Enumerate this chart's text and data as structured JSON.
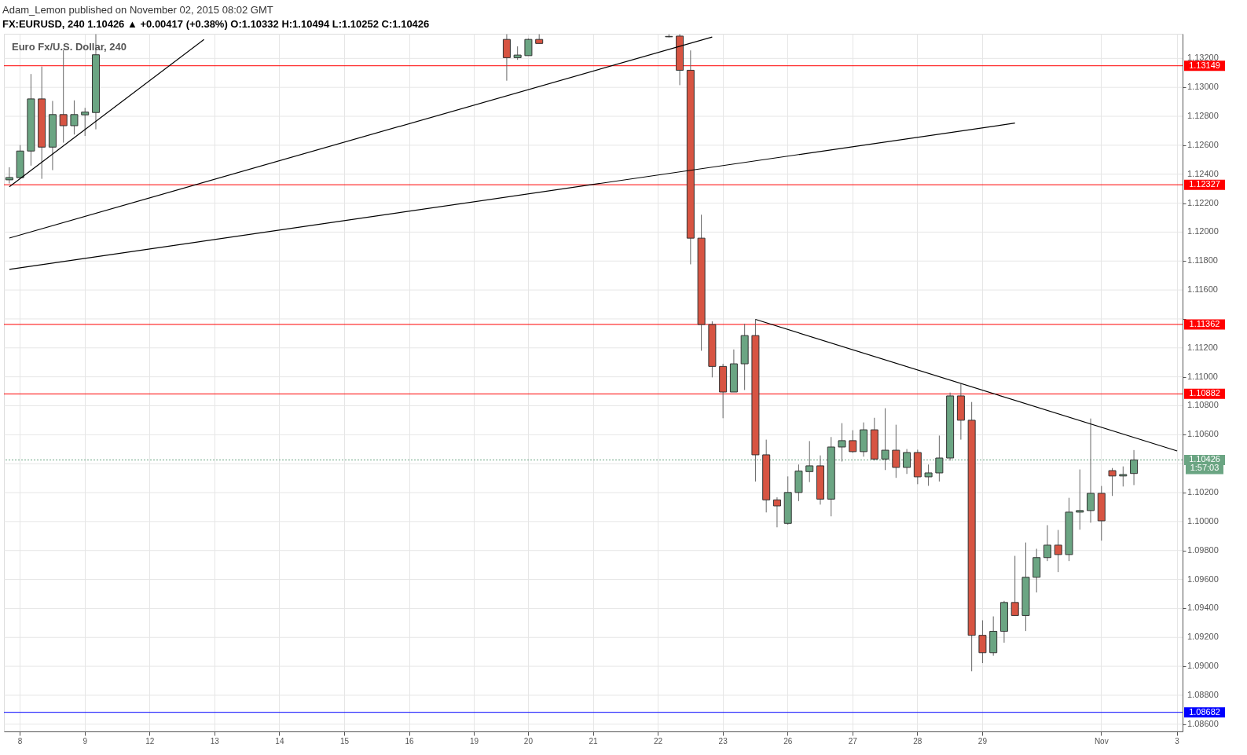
{
  "chart_data": {
    "type": "candlestick",
    "title": "FX:EURUSD, 240  1.10426 ▲ +0.00417 (+0.38%)  O:1.10332  H:1.10494  L:1.10252  C:1.10426",
    "annotations": [
      "Adam_Lemon published on November 02, 2015 08:02 GMT",
      "Euro Fx/U.S. Dollar, 240",
      "1:57:03"
    ],
    "categories": [
      null,
      "8",
      null,
      null,
      null,
      null,
      null,
      "9",
      null,
      null,
      null,
      null,
      null,
      "12",
      null,
      null,
      null,
      null,
      null,
      "13",
      null,
      null,
      null,
      null,
      null,
      "14",
      null,
      null,
      null,
      null,
      null,
      "15",
      null,
      null,
      null,
      null,
      null,
      "16",
      null,
      null,
      null,
      null,
      null,
      "19",
      null,
      null,
      null,
      null,
      "20",
      null,
      null,
      null,
      null,
      null,
      "21",
      null,
      null,
      null,
      null,
      null,
      "22",
      null,
      null,
      null,
      null,
      null,
      "23",
      null,
      null,
      null,
      null,
      null,
      "26",
      null,
      null,
      null,
      null,
      null,
      "27",
      null,
      null,
      null,
      null,
      null,
      "28",
      null,
      null,
      null,
      null,
      null,
      "29",
      null,
      null,
      null,
      null,
      null,
      null,
      null,
      null,
      null,
      null,
      "Nov",
      null,
      null,
      null,
      null,
      null,
      null,
      "3"
    ],
    "ohlc": [
      [
        1.12361,
        1.12448,
        1.12336,
        1.12377
      ],
      [
        1.12376,
        1.12601,
        1.12372,
        1.1256
      ],
      [
        1.1256,
        1.13092,
        1.12459,
        1.1292
      ],
      [
        1.1292,
        1.13144,
        1.12368,
        1.12587
      ],
      [
        1.12587,
        1.12906,
        1.12428,
        1.12812
      ],
      [
        1.12812,
        1.13258,
        1.12618,
        1.12735
      ],
      [
        1.12735,
        1.1291,
        1.12674,
        1.12812
      ],
      [
        1.1281,
        1.12858,
        1.12664,
        1.12829
      ],
      [
        1.12826,
        1.13367,
        1.1271,
        1.13225
      ],
      null,
      null,
      null,
      null,
      null,
      null,
      null,
      null,
      null,
      null,
      null,
      null,
      null,
      null,
      null,
      null,
      null,
      null,
      null,
      null,
      null,
      null,
      null,
      null,
      null,
      null,
      null,
      null,
      null,
      null,
      null,
      null,
      null,
      null,
      null,
      null,
      null,
      [
        1.13331,
        1.13367,
        1.13046,
        1.13205
      ],
      [
        1.13205,
        1.13283,
        1.1319,
        1.13223
      ],
      [
        1.13219,
        1.13337,
        1.13219,
        1.13331
      ],
      [
        1.13331,
        1.13367,
        1.13303,
        1.13303
      ],
      null,
      null,
      null,
      null,
      null,
      null,
      null,
      null,
      null,
      null,
      null,
      [
        1.13349,
        1.13367,
        1.13345,
        1.13352
      ],
      [
        1.13354,
        1.13367,
        1.13015,
        1.13118
      ],
      [
        1.13118,
        1.13255,
        1.11777,
        1.11958
      ],
      [
        1.11958,
        1.1212,
        1.1118,
        1.11361
      ],
      [
        1.11361,
        1.11383,
        1.10996,
        1.11072
      ],
      [
        1.11072,
        1.1109,
        1.10714,
        1.10895
      ],
      [
        1.10895,
        1.11189,
        1.10895,
        1.1109
      ],
      [
        1.1109,
        1.11367,
        1.10909,
        1.11285
      ],
      [
        1.11285,
        1.11397,
        1.10277,
        1.10461
      ],
      [
        1.10461,
        1.10566,
        1.10063,
        1.1015
      ],
      [
        1.1015,
        1.10168,
        1.0996,
        1.10108
      ],
      [
        1.09987,
        1.10312,
        1.09978,
        1.10201
      ],
      [
        1.10201,
        1.10394,
        1.10141,
        1.10349
      ],
      [
        1.10345,
        1.10556,
        1.10273,
        1.10385
      ],
      [
        1.10385,
        1.10457,
        1.10117,
        1.10155
      ],
      [
        1.10155,
        1.10584,
        1.10036,
        1.10515
      ],
      [
        1.10515,
        1.1068,
        1.10415,
        1.10559
      ],
      [
        1.10559,
        1.10631,
        1.10475,
        1.10483
      ],
      [
        1.10483,
        1.10685,
        1.10448,
        1.10634
      ],
      [
        1.10634,
        1.10717,
        1.10421,
        1.10432
      ],
      [
        1.10432,
        1.10783,
        1.10356,
        1.10493
      ],
      [
        1.10493,
        1.10669,
        1.10302,
        1.10374
      ],
      [
        1.10374,
        1.10501,
        1.10329,
        1.10477
      ],
      [
        1.10477,
        1.10497,
        1.10258,
        1.10309
      ],
      [
        1.10309,
        1.10394,
        1.10247,
        1.10336
      ],
      [
        1.10336,
        1.10594,
        1.10277,
        1.10439
      ],
      [
        1.10439,
        1.10891,
        1.10421,
        1.10868
      ],
      [
        1.10868,
        1.10952,
        1.10566,
        1.107
      ],
      [
        1.107,
        1.10826,
        1.08966,
        1.09214
      ],
      [
        1.09214,
        1.09318,
        1.09022,
        1.09094
      ],
      [
        1.09094,
        1.09345,
        1.09073,
        1.09242
      ],
      [
        1.09242,
        1.09452,
        1.09163,
        1.09441
      ],
      [
        1.09441,
        1.09763,
        1.09351,
        1.09351
      ],
      [
        1.09351,
        1.09855,
        1.09244,
        1.09615
      ],
      [
        1.09615,
        1.09812,
        1.0951,
        1.09751
      ],
      [
        1.09751,
        1.09975,
        1.09727,
        1.09837
      ],
      [
        1.09837,
        1.09942,
        1.09651,
        1.09772
      ],
      [
        1.09772,
        1.10164,
        1.09727,
        1.10065
      ],
      [
        1.10065,
        1.1036,
        1.09944,
        1.10076
      ],
      [
        1.10076,
        1.10712,
        1.09992,
        1.10195
      ],
      [
        1.10195,
        1.10246,
        1.09868,
        1.10005
      ],
      [
        1.10352,
        1.1037,
        1.10177,
        1.10315
      ],
      [
        1.10315,
        1.10381,
        1.10242,
        1.10325
      ],
      [
        1.10332,
        1.10494,
        1.10252,
        1.10426
      ],
      null,
      null,
      null,
      null
    ],
    "colors": [
      "#6ba583",
      "#6ba583",
      "#6ba583",
      "#d75442",
      "#6ba583",
      "#d75442",
      "#6ba583",
      "#6ba583",
      "#6ba583",
      null,
      null,
      null,
      null,
      null,
      null,
      null,
      null,
      null,
      null,
      null,
      null,
      null,
      null,
      null,
      null,
      null,
      null,
      null,
      null,
      null,
      null,
      null,
      null,
      null,
      null,
      null,
      null,
      null,
      null,
      null,
      null,
      null,
      null,
      null,
      null,
      null,
      "#d75442",
      "#6ba583",
      "#6ba583",
      "#d75442",
      null,
      null,
      null,
      null,
      null,
      null,
      null,
      null,
      null,
      null,
      null,
      "#6ba583",
      "#d75442",
      "#d75442",
      "#d75442",
      "#d75442",
      "#d75442",
      "#6ba583",
      "#6ba583",
      "#d75442",
      "#d75442",
      "#d75442",
      "#6ba583",
      "#6ba583",
      "#6ba583",
      "#d75442",
      "#6ba583",
      "#6ba583",
      "#d75442",
      "#6ba583",
      "#d75442",
      "#6ba583",
      "#d75442",
      "#6ba583",
      "#d75442",
      "#6ba583",
      "#6ba583",
      "#6ba583",
      "#d75442",
      "#d75442",
      "#d75442",
      "#6ba583",
      "#6ba583",
      "#d75442",
      "#6ba583",
      "#6ba583",
      "#6ba583",
      "#d75442",
      "#6ba583",
      "#6ba583",
      "#6ba583",
      "#d75442",
      "#d75442",
      "#6ba583",
      "#6ba583",
      null,
      null,
      null,
      null
    ],
    "series": [
      {
        "type": "line",
        "color": "#000000",
        "values": [
          1.12313,
          null,
          null,
          null,
          null,
          null,
          null,
          null,
          null,
          null,
          null,
          null,
          null,
          null,
          null,
          null,
          null,
          null,
          1.13331,
          null,
          null,
          null,
          null,
          null,
          null,
          null,
          null,
          null,
          null,
          null,
          null,
          null,
          null,
          null,
          null,
          null,
          null,
          null,
          null,
          null,
          null,
          null,
          null,
          null,
          null,
          null,
          null,
          null,
          null,
          null,
          null,
          null,
          null,
          null,
          null,
          null,
          null,
          null,
          null,
          null,
          null,
          null,
          null,
          null,
          null,
          null,
          null,
          null,
          null,
          null,
          null,
          null,
          null,
          null,
          null,
          null,
          null,
          null,
          null,
          null,
          null,
          null,
          null,
          null,
          null,
          null,
          null,
          null,
          null,
          null,
          null,
          null,
          null,
          null,
          null,
          null,
          null,
          null,
          null,
          null,
          null,
          null,
          null,
          null,
          null,
          null,
          null,
          null,
          null
        ]
      },
      {
        "type": "line",
        "color": "#000000",
        "values": [
          1.11959,
          null,
          null,
          null,
          null,
          null,
          null,
          null,
          null,
          null,
          null,
          null,
          null,
          null,
          null,
          null,
          null,
          null,
          null,
          null,
          null,
          null,
          null,
          null,
          null,
          null,
          null,
          null,
          null,
          null,
          null,
          null,
          null,
          null,
          null,
          null,
          null,
          null,
          null,
          null,
          null,
          null,
          null,
          null,
          null,
          null,
          null,
          null,
          null,
          null,
          null,
          null,
          null,
          null,
          null,
          null,
          null,
          null,
          null,
          null,
          null,
          null,
          null,
          null,
          null,
          1.13348,
          null,
          null,
          null,
          null,
          null,
          null,
          null,
          null,
          null,
          null,
          null,
          null,
          null,
          null,
          null,
          null,
          null,
          null,
          null,
          null,
          null,
          null,
          null,
          null,
          null,
          null,
          null,
          null,
          null,
          null,
          null,
          null,
          null,
          null,
          null,
          null,
          null,
          null,
          null,
          null,
          null,
          null,
          null
        ]
      },
      {
        "type": "line",
        "color": "#000000",
        "values": [
          1.11742,
          null,
          null,
          null,
          null,
          null,
          null,
          null,
          null,
          null,
          null,
          null,
          null,
          null,
          null,
          null,
          null,
          null,
          null,
          null,
          null,
          null,
          null,
          null,
          null,
          null,
          null,
          null,
          null,
          null,
          null,
          null,
          null,
          null,
          null,
          null,
          null,
          null,
          null,
          null,
          null,
          null,
          null,
          null,
          null,
          null,
          null,
          null,
          null,
          null,
          null,
          null,
          null,
          null,
          null,
          null,
          null,
          null,
          null,
          null,
          null,
          null,
          null,
          null,
          null,
          null,
          null,
          null,
          null,
          null,
          null,
          null,
          null,
          null,
          null,
          null,
          null,
          null,
          null,
          null,
          null,
          null,
          null,
          null,
          null,
          null,
          null,
          null,
          null,
          null,
          null,
          null,
          null,
          1.12753,
          null,
          null,
          null,
          null,
          null,
          null,
          null,
          null,
          null,
          null,
          null,
          null,
          null,
          null,
          null
        ]
      },
      {
        "type": "line",
        "color": "#000000",
        "values": [
          null,
          null,
          null,
          null,
          null,
          null,
          null,
          null,
          null,
          null,
          null,
          null,
          null,
          null,
          null,
          null,
          null,
          null,
          null,
          null,
          null,
          null,
          null,
          null,
          null,
          null,
          null,
          null,
          null,
          null,
          null,
          null,
          null,
          null,
          null,
          null,
          null,
          null,
          null,
          null,
          null,
          null,
          null,
          null,
          null,
          null,
          null,
          null,
          null,
          null,
          null,
          null,
          null,
          null,
          null,
          null,
          null,
          null,
          null,
          null,
          null,
          null,
          null,
          null,
          null,
          null,
          null,
          null,
          null,
          1.11397,
          null,
          null,
          null,
          null,
          null,
          null,
          null,
          null,
          null,
          null,
          null,
          null,
          null,
          null,
          null,
          null,
          null,
          null,
          null,
          null,
          null,
          null,
          null,
          null,
          null,
          null,
          null,
          null,
          null,
          null,
          null,
          null,
          null,
          null,
          null,
          null,
          null,
          null,
          1.10488
        ]
      }
    ],
    "ylim": [
      1.0855,
      1.1337
    ],
    "yticks": [
      {
        "value": 1.086,
        "label": "1.08600"
      },
      {
        "value": 1.088,
        "label": "1.08800"
      },
      {
        "value": 1.09,
        "label": "1.09000"
      },
      {
        "value": 1.092,
        "label": "1.09200"
      },
      {
        "value": 1.094,
        "label": "1.09400"
      },
      {
        "value": 1.096,
        "label": "1.09600"
      },
      {
        "value": 1.098,
        "label": "1.09800"
      },
      {
        "value": 1.1,
        "label": "1.10000"
      },
      {
        "value": 1.102,
        "label": "1.10200"
      },
      {
        "value": 1.104,
        "label": null
      },
      {
        "value": 1.106,
        "label": "1.10600"
      },
      {
        "value": 1.108,
        "label": "1.10800"
      },
      {
        "value": 1.11,
        "label": "1.11000"
      },
      {
        "value": 1.112,
        "label": "1.11200"
      },
      {
        "value": 1.114,
        "label": null
      },
      {
        "value": 1.116,
        "label": "1.11600"
      },
      {
        "value": 1.118,
        "label": "1.11800"
      },
      {
        "value": 1.12,
        "label": "1.12000"
      },
      {
        "value": 1.122,
        "label": "1.12200"
      },
      {
        "value": 1.124,
        "label": "1.12400"
      },
      {
        "value": 1.126,
        "label": "1.12600"
      },
      {
        "value": 1.128,
        "label": "1.12800"
      },
      {
        "value": 1.13,
        "label": "1.13000"
      },
      {
        "value": 1.132,
        "label": "1.13200"
      }
    ],
    "ref_lines": [
      {
        "axis": "y",
        "value": 1.13149,
        "label": "1.13149",
        "color": "#ff0000"
      },
      {
        "axis": "y",
        "value": 1.12327,
        "label": "1.12327",
        "color": "#ff0000"
      },
      {
        "axis": "y",
        "value": 1.11362,
        "label": "1.11362",
        "color": "#ff0000"
      },
      {
        "axis": "y",
        "value": 1.10882,
        "label": "1.10882",
        "color": "#ff0000"
      },
      {
        "axis": "y",
        "value": 1.08682,
        "label": "1.08682",
        "color": "#0000ff"
      },
      {
        "axis": "y",
        "value": 1.10426,
        "label": "1.10426",
        "color": "#6ba583",
        "line_style": "dotted"
      }
    ],
    "grid": true
  }
}
